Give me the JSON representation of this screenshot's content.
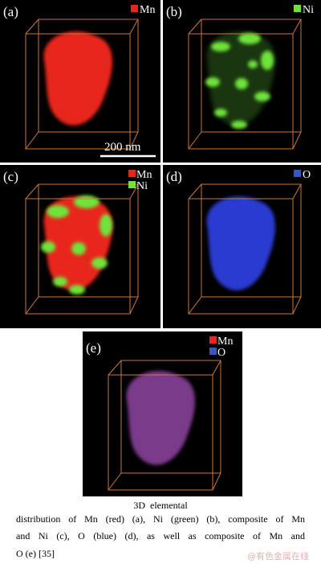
{
  "panels": [
    {
      "label": "(a)",
      "legend": [
        "Mn"
      ],
      "scale_bar": "200 nm"
    },
    {
      "label": "(b)",
      "legend": [
        "Ni"
      ]
    },
    {
      "label": "(c)",
      "legend": [
        "Mn",
        "Ni"
      ]
    },
    {
      "label": "(d)",
      "legend": [
        "O"
      ]
    },
    {
      "label": "(e)",
      "legend": [
        "Mn",
        "O"
      ]
    }
  ],
  "caption": {
    "lines": [
      "3D  elemental",
      "distribution of Mn (red) (a), Ni (green) (b), composite of Mn",
      "and Ni (c), O (blue) (d), as well as composite of Mn and",
      "O (e) [35]"
    ]
  },
  "watermark": "@有色金属在线"
}
